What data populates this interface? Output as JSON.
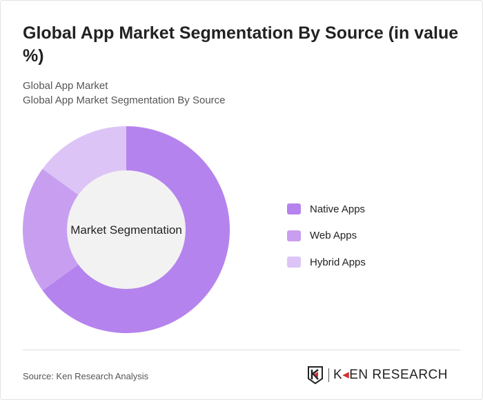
{
  "title": "Global App Market Segmentation By Source (in value %)",
  "subtitle1": "Global App Market",
  "subtitle2": "Global App Market Segmentation By Source",
  "source": "Source: Ken Research Analysis",
  "logo_text": "KEN RESEARCH",
  "chart_data": {
    "type": "pie",
    "donut": true,
    "center_label": "Market Segmentation",
    "categories": [
      "Native Apps",
      "Web Apps",
      "Hybrid Apps"
    ],
    "values": [
      65,
      20,
      15
    ],
    "colors": [
      "#b583ed",
      "#c89ff0",
      "#dcc5f6"
    ],
    "legend_position": "right"
  }
}
